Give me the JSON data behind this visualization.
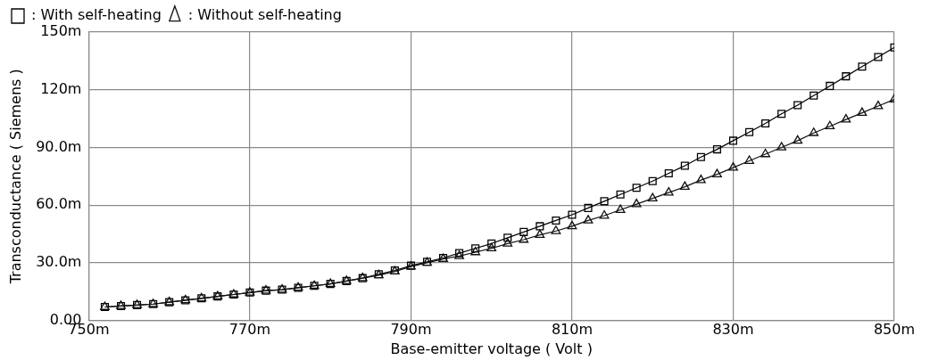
{
  "chart_data": {
    "type": "line",
    "xlabel": "Base-emitter voltage ( Volt )",
    "ylabel": "Transconductance ( Siemens )",
    "x": [
      752,
      754,
      756,
      758,
      760,
      762,
      764,
      766,
      768,
      770,
      772,
      774,
      776,
      778,
      780,
      782,
      784,
      786,
      788,
      790,
      792,
      794,
      796,
      798,
      800,
      802,
      804,
      806,
      808,
      810,
      812,
      814,
      816,
      818,
      820,
      822,
      824,
      826,
      828,
      830,
      832,
      834,
      836,
      838,
      840,
      842,
      844,
      846,
      848,
      850
    ],
    "series": [
      {
        "name": ": With self-heating",
        "color": "#000000",
        "marker": "square",
        "values": [
          7,
          7.5,
          8,
          8.5,
          9.5,
          10.5,
          11.5,
          12.5,
          13.5,
          14.5,
          15.5,
          16,
          17,
          18,
          19,
          20.5,
          22,
          24,
          26,
          28.5,
          30.5,
          32.5,
          35,
          37.5,
          40,
          43,
          46,
          49,
          52,
          55,
          58.5,
          62,
          65.5,
          69,
          72.5,
          76.5,
          80.5,
          85,
          89,
          93.5,
          98,
          102.5,
          107.5,
          112,
          117,
          122,
          127,
          132,
          137,
          142
        ]
      },
      {
        "name": ": Without self-heating",
        "color": "#111111",
        "marker": "triangle",
        "values": [
          7,
          7.5,
          8,
          8.5,
          9.5,
          10.5,
          11.5,
          12.5,
          13.5,
          14.5,
          15.5,
          16,
          17,
          18,
          19,
          20.5,
          22,
          23.5,
          25.5,
          28,
          30,
          32,
          33.5,
          35.5,
          37.5,
          40,
          42,
          44.5,
          46.5,
          49,
          52,
          54.5,
          57.5,
          60.5,
          63.5,
          66.5,
          69.5,
          73,
          76,
          79.5,
          83,
          86.5,
          90,
          93.5,
          97.5,
          101,
          104.5,
          108,
          111.5,
          115
        ]
      }
    ],
    "xlim": [
      750,
      850
    ],
    "xticks": [
      {
        "value": 750,
        "label": "750m"
      },
      {
        "value": 770,
        "label": "770m"
      },
      {
        "value": 790,
        "label": "790m"
      },
      {
        "value": 810,
        "label": "810m"
      },
      {
        "value": 830,
        "label": "830m"
      },
      {
        "value": 850,
        "label": "850m"
      }
    ],
    "ylim": [
      0,
      150
    ],
    "yticks": [
      {
        "value": 0,
        "label": "0.00"
      },
      {
        "value": 30,
        "label": "30.0m"
      },
      {
        "value": 60,
        "label": "60.0m"
      },
      {
        "value": 90,
        "label": "90.0m"
      },
      {
        "value": 120,
        "label": "120m"
      },
      {
        "value": 150,
        "label": "150m"
      }
    ],
    "grid": true,
    "legend": "top left",
    "line_style": "solid"
  }
}
